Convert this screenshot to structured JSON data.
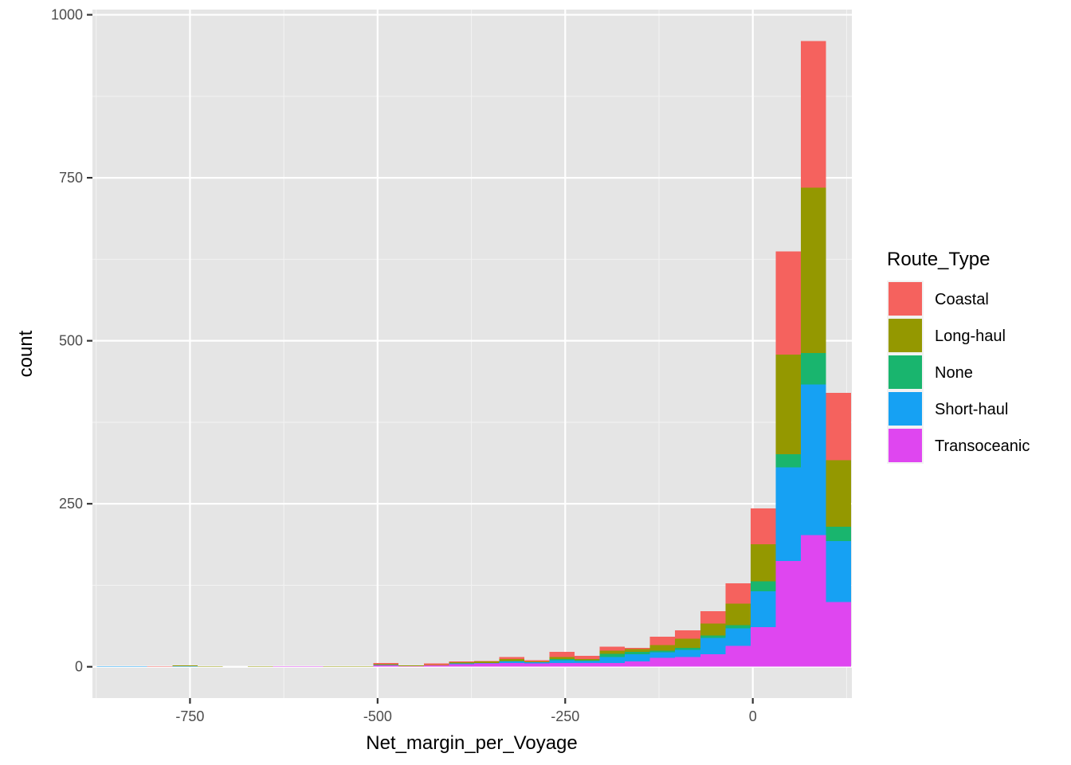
{
  "chart_data": {
    "type": "bar",
    "subtype": "stacked-histogram",
    "xlabel": "Net_margin_per_Voyage",
    "ylabel": "count",
    "xlim": [
      -880,
      132
    ],
    "ylim": [
      -48,
      1008
    ],
    "x_ticks": [
      -750,
      -500,
      -250,
      0
    ],
    "x_tick_labels": [
      "-750",
      "-500",
      "-250",
      "0"
    ],
    "y_ticks": [
      0,
      250,
      500,
      750,
      1000
    ],
    "y_tick_labels": [
      "0",
      "250",
      "500",
      "750",
      "1000"
    ],
    "grid": true,
    "legend": {
      "title": "Route_Type",
      "position": "right"
    },
    "bin_width": 33.5,
    "bin_starts": [
      -874,
      -840.5,
      -807,
      -773.5,
      -740,
      -706.5,
      -673,
      -639.5,
      -606,
      -572.5,
      -539,
      -505.5,
      -472,
      -438.5,
      -405,
      -371.5,
      -338,
      -304.5,
      -271,
      -237.5,
      -204,
      -170.5,
      -137,
      -103.5,
      -70,
      -36.5,
      -3,
      30.5,
      64,
      97.5
    ],
    "series": [
      {
        "name": "Transoceanic",
        "color": "#E76BF3",
        "fill": "#DF46F0",
        "values": [
          0,
          0,
          0,
          0,
          0,
          0,
          0,
          1,
          1,
          0,
          0,
          2,
          1,
          2,
          4,
          5,
          6,
          5,
          6,
          6,
          6,
          8,
          14,
          15,
          19,
          32,
          61,
          162,
          202,
          99
        ]
      },
      {
        "name": "Short-haul",
        "color": "#00B0F6",
        "fill": "#16A1F3",
        "values": [
          1,
          1,
          0,
          1,
          0,
          0,
          0,
          0,
          0,
          0,
          0,
          1,
          0,
          0,
          1,
          1,
          2,
          2,
          4,
          3,
          9,
          11,
          8,
          11,
          25,
          27,
          55,
          144,
          231,
          94
        ]
      },
      {
        "name": "None",
        "color": "#00BF7D",
        "fill": "#19B56E",
        "values": [
          0,
          0,
          0,
          0,
          0,
          0,
          0,
          0,
          0,
          0,
          0,
          0,
          0,
          0,
          0,
          0,
          1,
          0,
          2,
          1,
          5,
          4,
          3,
          3,
          4,
          5,
          15,
          20,
          48,
          22
        ]
      },
      {
        "name": "Long-haul",
        "color": "#A3A500",
        "fill": "#949800",
        "values": [
          0,
          0,
          0,
          1,
          1,
          0,
          1,
          0,
          0,
          1,
          1,
          1,
          1,
          1,
          2,
          2,
          3,
          1,
          3,
          2,
          5,
          4,
          8,
          14,
          18,
          33,
          57,
          153,
          254,
          102
        ]
      },
      {
        "name": "Coastal",
        "color": "#F8766D",
        "fill": "#F5625E",
        "values": [
          0,
          0,
          1,
          0,
          0,
          0,
          0,
          0,
          0,
          0,
          0,
          2,
          0,
          2,
          1,
          1,
          3,
          2,
          8,
          5,
          6,
          2,
          13,
          13,
          19,
          31,
          55,
          158,
          225,
          103
        ]
      }
    ]
  },
  "colors": {
    "panel": "#E5E5E5",
    "grid_major": "#FFFFFF",
    "grid_minor": "#F2F2F2",
    "tick": "#333333"
  }
}
